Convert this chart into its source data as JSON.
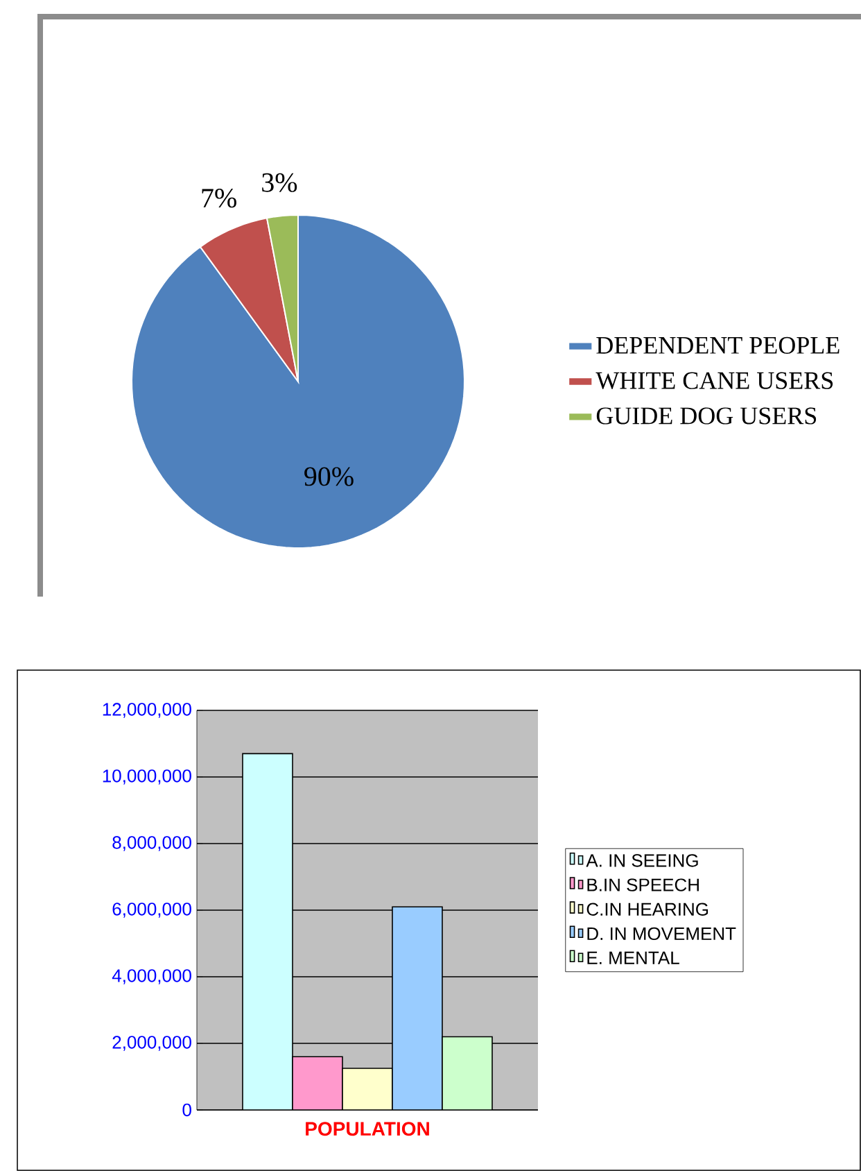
{
  "chart_data": [
    {
      "type": "pie",
      "categories": [
        "DEPENDENT PEOPLE",
        "WHITE CANE USERS",
        "GUIDE DOG USERS"
      ],
      "values": [
        90,
        7,
        3
      ],
      "colors": [
        "#4f81bd",
        "#c0504d",
        "#9bbb59"
      ],
      "value_labels": [
        "90%",
        "7%",
        "3%"
      ],
      "legend": "right"
    },
    {
      "type": "bar",
      "categories": [
        null
      ],
      "xlabel": "POPULATION",
      "series": [
        {
          "name": "A. IN SEEING",
          "color": "#ccffff",
          "values": [
            10700000
          ]
        },
        {
          "name": "B.IN SPEECH",
          "color": "#ff99cc",
          "values": [
            1600000
          ]
        },
        {
          "name": "C.IN HEARING",
          "color": "#ffffcc",
          "values": [
            1250000
          ]
        },
        {
          "name": "D. IN MOVEMENT",
          "color": "#99ccff",
          "values": [
            6100000
          ]
        },
        {
          "name": "E. MENTAL",
          "color": "#ccffcc",
          "values": [
            2200000
          ]
        }
      ],
      "ylim": [
        0,
        12000000
      ],
      "yticks": [
        {
          "value": 0,
          "label": "0"
        },
        {
          "value": 2000000,
          "label": "2,000,000"
        },
        {
          "value": 4000000,
          "label": "4,000,000"
        },
        {
          "value": 6000000,
          "label": "6,000,000"
        },
        {
          "value": 8000000,
          "label": "8,000,000"
        },
        {
          "value": 10000000,
          "label": "10,000,000"
        },
        {
          "value": 12000000,
          "label": "12,000,000"
        }
      ],
      "grid": "y",
      "legend": "right"
    }
  ]
}
